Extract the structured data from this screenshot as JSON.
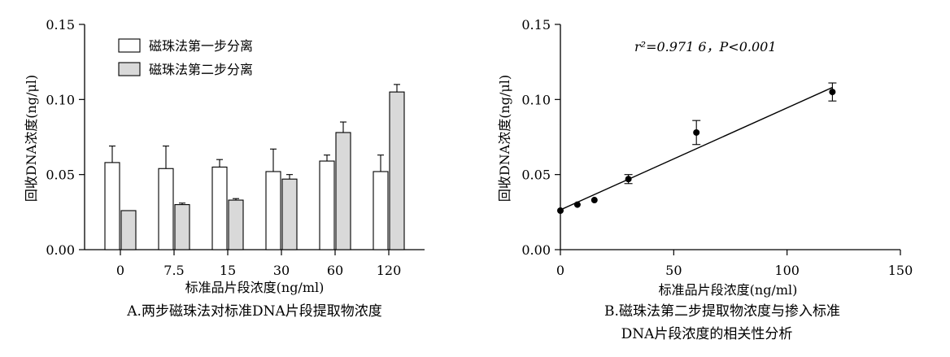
{
  "chart_data": [
    {
      "type": "bar",
      "panel_caption": "A.两步磁珠法对标准DNA片段提取物浓度",
      "xlabel": "标准品片段浓度(ng/ml)",
      "ylabel": "回收DNA浓度(ng/μl)",
      "ylim": [
        0,
        0.15
      ],
      "yticks": [
        "0.00",
        "0.05",
        "0.10",
        "0.15"
      ],
      "categories": [
        "0",
        "7.5",
        "15",
        "30",
        "60",
        "120"
      ],
      "series": [
        {
          "name": "磁珠法第一步分离",
          "color": "#ffffff",
          "values": [
            0.058,
            0.054,
            0.055,
            0.052,
            0.059,
            0.052
          ],
          "errors": [
            0.011,
            0.015,
            0.005,
            0.015,
            0.004,
            0.011
          ]
        },
        {
          "name": "磁珠法第二步分离",
          "color": "#d9d9d9",
          "values": [
            0.026,
            0.03,
            0.033,
            0.047,
            0.078,
            0.105
          ],
          "errors": [
            0,
            0.001,
            0.001,
            0.003,
            0.007,
            0.005
          ]
        }
      ],
      "legend_position": "top-left",
      "grid": false
    },
    {
      "type": "scatter",
      "panel_caption_lines": [
        "B.磁珠法第二步提取物浓度与掺入标准",
        "DNA片段浓度的相关性分析"
      ],
      "xlabel": "标准品片段浓度(ng/ml)",
      "ylabel": "回收DNA浓度(ng/μl)",
      "xlim": [
        0,
        150
      ],
      "ylim": [
        0,
        0.15
      ],
      "xticks": [
        "0",
        "50",
        "100",
        "150"
      ],
      "yticks": [
        "0.00",
        "0.05",
        "0.10",
        "0.15"
      ],
      "annotation": "r²=0.971 6，P<0.001",
      "points": [
        {
          "x": 0,
          "y": 0.026,
          "err": 0
        },
        {
          "x": 7.5,
          "y": 0.03,
          "err": 0
        },
        {
          "x": 15,
          "y": 0.033,
          "err": 0
        },
        {
          "x": 30,
          "y": 0.047,
          "err": 0.003
        },
        {
          "x": 60,
          "y": 0.078,
          "err": 0.008
        },
        {
          "x": 120,
          "y": 0.105,
          "err": 0.006
        }
      ],
      "fit_line": {
        "x": [
          0,
          120
        ],
        "y": [
          0.0265,
          0.108
        ]
      },
      "grid": false
    }
  ]
}
